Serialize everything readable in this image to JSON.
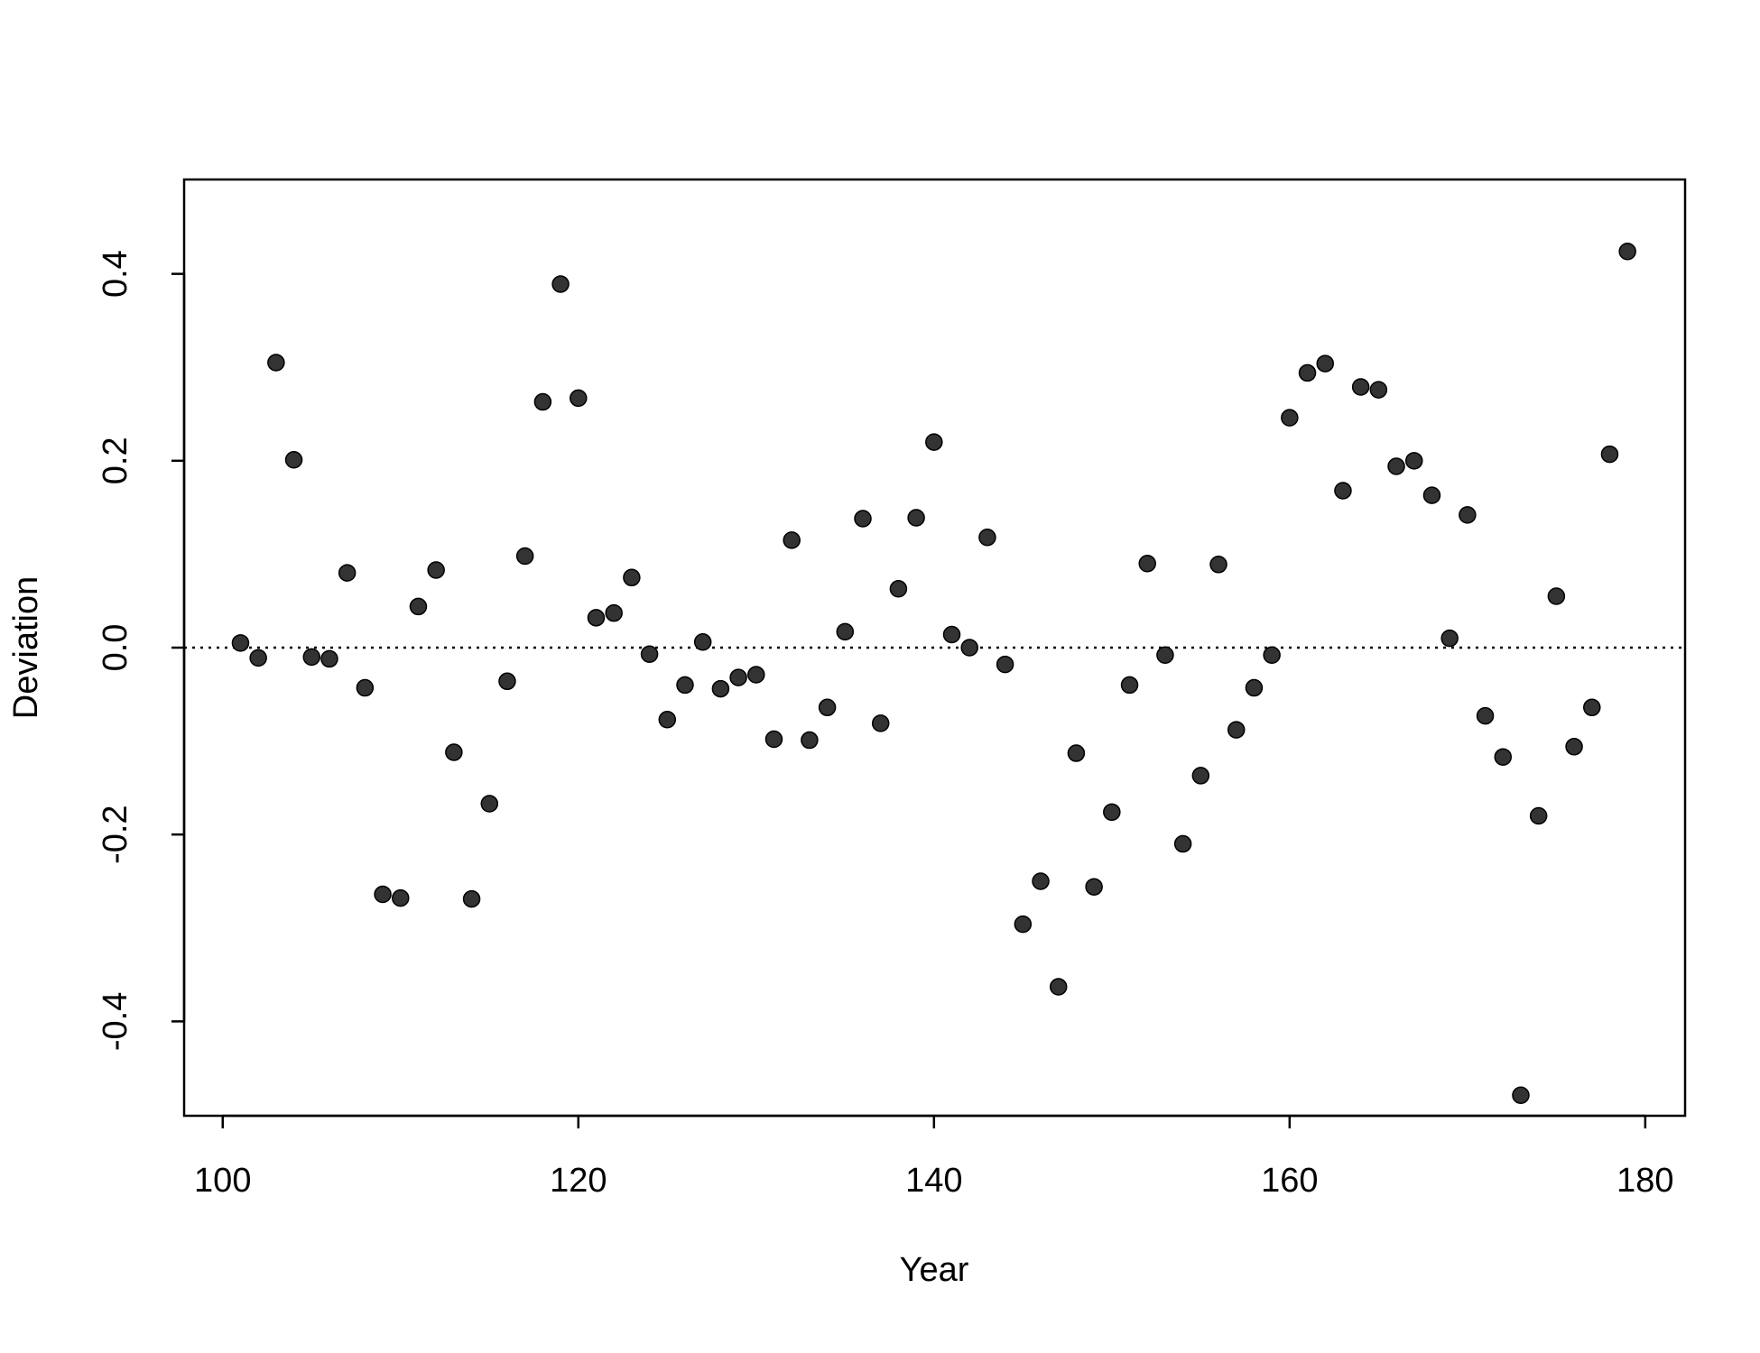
{
  "chart_data": {
    "type": "scatter",
    "x_label": "Year",
    "y_label": "Deviation",
    "x": [
      101,
      102,
      103,
      104,
      105,
      106,
      107,
      108,
      109,
      110,
      111,
      112,
      113,
      114,
      115,
      116,
      117,
      118,
      119,
      120,
      121,
      122,
      123,
      124,
      125,
      126,
      127,
      128,
      129,
      130,
      131,
      132,
      133,
      134,
      135,
      136,
      137,
      138,
      139,
      140,
      141,
      142,
      143,
      144,
      145,
      146,
      147,
      148,
      149,
      150,
      151,
      152,
      153,
      154,
      155,
      156,
      157,
      158,
      159,
      160,
      161,
      162,
      163,
      164,
      165,
      166,
      167,
      168,
      169,
      170,
      171,
      172,
      173,
      174,
      175,
      176,
      177,
      178,
      179
    ],
    "values": [
      0.005,
      -0.011,
      0.305,
      0.201,
      -0.01,
      -0.012,
      0.08,
      -0.043,
      -0.264,
      -0.268,
      0.044,
      0.083,
      -0.112,
      -0.269,
      -0.167,
      -0.036,
      0.098,
      0.263,
      0.389,
      0.267,
      0.032,
      0.037,
      0.075,
      -0.007,
      -0.077,
      -0.04,
      0.006,
      -0.044,
      -0.032,
      -0.029,
      -0.098,
      0.115,
      -0.099,
      -0.064,
      0.017,
      0.138,
      -0.081,
      0.063,
      0.139,
      0.22,
      0.014,
      0.0,
      0.118,
      -0.018,
      -0.296,
      -0.25,
      -0.363,
      -0.113,
      -0.256,
      -0.176,
      -0.04,
      0.09,
      -0.008,
      -0.21,
      -0.137,
      0.089,
      -0.088,
      -0.043,
      -0.008,
      0.246,
      0.294,
      0.304,
      0.168,
      0.279,
      0.276,
      0.194,
      0.2,
      0.163,
      0.01,
      0.142,
      -0.073,
      -0.117,
      -0.479,
      -0.18,
      0.055,
      -0.106,
      -0.064,
      0.207,
      0.424
    ],
    "color": "#333333",
    "reference_line": 0,
    "xlim": [
      97.83,
      182.24
    ],
    "ylim": [
      -0.501,
      0.501
    ],
    "xticks": [
      100,
      120,
      140,
      160,
      180
    ],
    "yticks": [
      {
        "value": -0.4,
        "label": "-0.4"
      },
      {
        "value": -0.2,
        "label": "-0.2"
      },
      {
        "value": 0,
        "label": "0.0"
      },
      {
        "value": 0.2,
        "label": "0.2"
      },
      {
        "value": 0.4,
        "label": "0.4"
      }
    ]
  }
}
